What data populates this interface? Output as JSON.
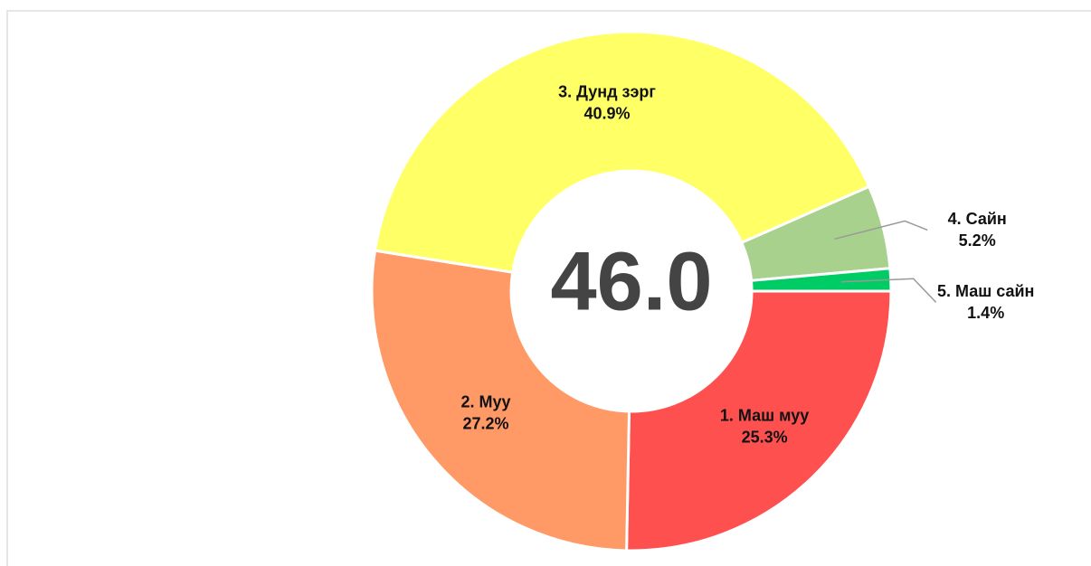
{
  "chart_data": {
    "type": "donut",
    "center_label": "46.0",
    "categories": [
      "1. Маш муу",
      "2. Муу",
      "3. Дунд зэрг",
      "4. Сайн",
      "5. Маш сайн"
    ],
    "values": [
      25.3,
      27.2,
      40.9,
      5.2,
      1.4
    ],
    "value_labels": [
      "25.3%",
      "27.2%",
      "40.9%",
      "5.2%",
      "1.4%"
    ],
    "colors": [
      "#ff5050",
      "#ff9966",
      "#ffff66",
      "#a9d18e",
      "#00cc66"
    ]
  }
}
